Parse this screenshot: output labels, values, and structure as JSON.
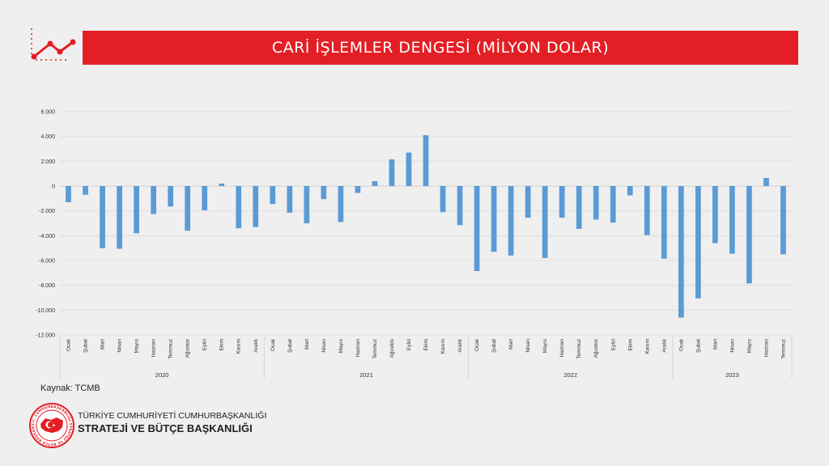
{
  "title": "CARİ İŞLEMLER DENGESİ (MİLYON DOLAR)",
  "source": "Kaynak: TCMB",
  "organization": {
    "line1": "TÜRKİYE CUMHURİYETİ CUMHURBAŞKANLIĞI",
    "line2": "STRATEJİ VE BÜTÇE BAŞKANLIĞI",
    "emblem_text": "T.C. CUMHURBAŞKANLIĞI STRATEJİ VE BÜTÇE BAŞKANLIĞI"
  },
  "colors": {
    "accent": "#e31e25",
    "bar": "#5b9bd5"
  },
  "icons": {
    "header": "trend-line-icon",
    "emblem": "presidency-emblem-icon"
  },
  "chart_data": {
    "type": "bar",
    "ylim": [
      -12000,
      6000
    ],
    "yticks": [
      "6.000",
      "4.000",
      "2.000",
      "0",
      "-2.000",
      "-4.000",
      "-6.000",
      "-8.000",
      "-10.000",
      "-12.000"
    ],
    "ytick_values": [
      6000,
      4000,
      2000,
      0,
      -2000,
      -4000,
      -6000,
      -8000,
      -10000,
      -12000
    ],
    "grid": true,
    "years": [
      {
        "label": "2020",
        "months": 12
      },
      {
        "label": "2021",
        "months": 12
      },
      {
        "label": "2022",
        "months": 12
      },
      {
        "label": "2023",
        "months": 7
      }
    ],
    "categories": [
      "Ocak",
      "Şubat",
      "Mart",
      "Nisan",
      "Mayıs",
      "Haziran",
      "Temmuz",
      "Ağustos",
      "Eylül",
      "Ekim",
      "Kasım",
      "Aralık",
      "Ocak",
      "Şubat",
      "Mart",
      "Nisan",
      "Mayıs",
      "Haziran",
      "Temmuz",
      "Ağustos",
      "Eylül",
      "Ekim",
      "Kasım",
      "Aralık",
      "Ocak",
      "Şubat",
      "Mart",
      "Nisan",
      "Mayıs",
      "Haziran",
      "Temmuz",
      "Ağustos",
      "Eylül",
      "Ekim",
      "Kasım",
      "Aralık",
      "Ocak",
      "Şubat",
      "Mart",
      "Nisan",
      "Mayıs",
      "Haziran",
      "Temmuz"
    ],
    "values": [
      -1300,
      -700,
      -5000,
      -5050,
      -3800,
      -2250,
      -1650,
      -3600,
      -1950,
      200,
      -3400,
      -3300,
      -1450,
      -2150,
      -3000,
      -1050,
      -2900,
      -550,
      400,
      2150,
      2700,
      4100,
      -2100,
      -3150,
      -6850,
      -5300,
      -5600,
      -2550,
      -5800,
      -2550,
      -3450,
      -2700,
      -2950,
      -750,
      -3950,
      -5850,
      -10600,
      -9050,
      -4600,
      -5450,
      -7850,
      650,
      -5500
    ]
  }
}
